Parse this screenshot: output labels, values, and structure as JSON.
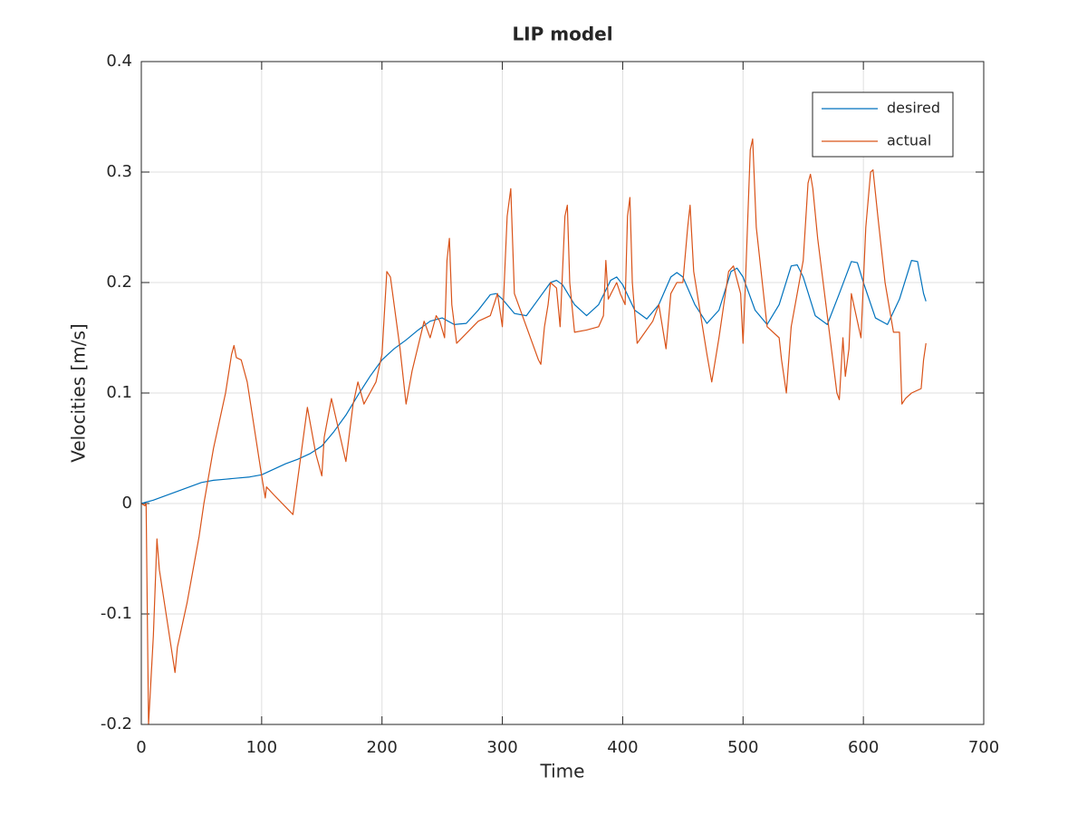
{
  "chart_data": {
    "type": "line",
    "title": "LIP model",
    "xlabel": "Time",
    "ylabel": "Velocities [m/s]",
    "xlim": [
      0,
      700
    ],
    "xticks": [
      0,
      100,
      200,
      300,
      400,
      500,
      600,
      700
    ],
    "ylim": [
      -0.2,
      0.4
    ],
    "yticks": [
      -0.2,
      -0.1,
      0,
      0.1,
      0.2,
      0.3,
      0.4
    ],
    "grid": true,
    "legend": "upper right",
    "series": [
      {
        "name": "desired",
        "color": "#0072bd",
        "x": [
          0,
          10,
          20,
          30,
          40,
          50,
          60,
          70,
          80,
          90,
          100,
          110,
          120,
          130,
          140,
          150,
          160,
          170,
          180,
          190,
          200,
          210,
          220,
          230,
          240,
          250,
          260,
          270,
          280,
          290,
          295,
          300,
          310,
          320,
          330,
          340,
          345,
          350,
          360,
          370,
          380,
          390,
          395,
          400,
          410,
          420,
          430,
          440,
          445,
          450,
          460,
          470,
          480,
          490,
          495,
          500,
          510,
          520,
          530,
          540,
          545,
          550,
          560,
          570,
          580,
          590,
          595,
          600,
          610,
          620,
          630,
          640,
          645,
          650,
          652
        ],
        "values": [
          0,
          0.003,
          0.007,
          0.011,
          0.015,
          0.019,
          0.021,
          0.022,
          0.023,
          0.024,
          0.026,
          0.031,
          0.036,
          0.04,
          0.045,
          0.052,
          0.065,
          0.08,
          0.098,
          0.115,
          0.13,
          0.14,
          0.148,
          0.157,
          0.165,
          0.168,
          0.162,
          0.163,
          0.175,
          0.189,
          0.19,
          0.185,
          0.172,
          0.17,
          0.185,
          0.2,
          0.202,
          0.198,
          0.18,
          0.17,
          0.18,
          0.202,
          0.205,
          0.198,
          0.175,
          0.167,
          0.18,
          0.205,
          0.209,
          0.205,
          0.18,
          0.163,
          0.175,
          0.21,
          0.213,
          0.205,
          0.175,
          0.162,
          0.18,
          0.215,
          0.216,
          0.205,
          0.17,
          0.162,
          0.19,
          0.219,
          0.218,
          0.2,
          0.168,
          0.162,
          0.185,
          0.22,
          0.219,
          0.19,
          0.183
        ]
      },
      {
        "name": "actual",
        "color": "#d95319",
        "x": [
          0,
          3,
          4,
          6,
          10,
          13,
          15,
          22,
          28,
          30,
          38,
          48,
          52,
          60,
          70,
          75,
          77,
          79,
          83,
          88,
          100,
          103,
          104,
          110,
          126,
          138,
          145,
          150,
          152,
          158,
          170,
          176,
          180,
          185,
          190,
          195,
          200,
          204,
          207,
          215,
          220,
          225,
          235,
          240,
          245,
          248,
          252,
          254,
          256,
          258,
          262,
          280,
          290,
          296,
          300,
          304,
          307,
          310,
          330,
          332,
          335,
          338,
          340,
          345,
          348,
          352,
          354,
          356,
          360,
          370,
          380,
          384,
          386,
          388,
          395,
          398,
          402,
          404,
          406,
          408,
          412,
          425,
          430,
          436,
          440,
          445,
          450,
          454,
          456,
          459,
          470,
          474,
          480,
          484,
          488,
          492,
          498,
          500,
          502,
          506,
          508,
          511,
          520,
          530,
          532,
          536,
          540,
          550,
          554,
          556,
          558,
          562,
          570,
          578,
          580,
          583,
          585,
          588,
          590,
          598,
          602,
          606,
          608,
          612,
          618,
          625,
          630,
          632,
          635,
          640,
          648,
          650,
          652
        ],
        "values": [
          0,
          -0.002,
          0,
          -0.2,
          -0.12,
          -0.032,
          -0.06,
          -0.11,
          -0.153,
          -0.13,
          -0.09,
          -0.03,
          0.0,
          0.05,
          0.1,
          0.135,
          0.143,
          0.132,
          0.13,
          0.11,
          0.025,
          0.005,
          0.015,
          0.008,
          -0.01,
          0.087,
          0.045,
          0.025,
          0.06,
          0.095,
          0.038,
          0.09,
          0.11,
          0.09,
          0.1,
          0.11,
          0.135,
          0.21,
          0.205,
          0.14,
          0.09,
          0.12,
          0.165,
          0.15,
          0.17,
          0.165,
          0.15,
          0.22,
          0.24,
          0.18,
          0.145,
          0.165,
          0.17,
          0.19,
          0.16,
          0.26,
          0.285,
          0.19,
          0.13,
          0.126,
          0.16,
          0.18,
          0.2,
          0.195,
          0.16,
          0.26,
          0.27,
          0.2,
          0.155,
          0.157,
          0.16,
          0.17,
          0.22,
          0.185,
          0.2,
          0.19,
          0.18,
          0.26,
          0.277,
          0.2,
          0.145,
          0.165,
          0.18,
          0.14,
          0.19,
          0.2,
          0.2,
          0.25,
          0.27,
          0.21,
          0.135,
          0.11,
          0.15,
          0.18,
          0.21,
          0.215,
          0.19,
          0.145,
          0.2,
          0.32,
          0.33,
          0.25,
          0.16,
          0.15,
          0.13,
          0.1,
          0.16,
          0.22,
          0.29,
          0.298,
          0.285,
          0.24,
          0.17,
          0.1,
          0.094,
          0.15,
          0.115,
          0.14,
          0.19,
          0.15,
          0.25,
          0.3,
          0.302,
          0.26,
          0.2,
          0.155,
          0.155,
          0.09,
          0.095,
          0.1,
          0.104,
          0.13,
          0.145
        ]
      }
    ]
  }
}
